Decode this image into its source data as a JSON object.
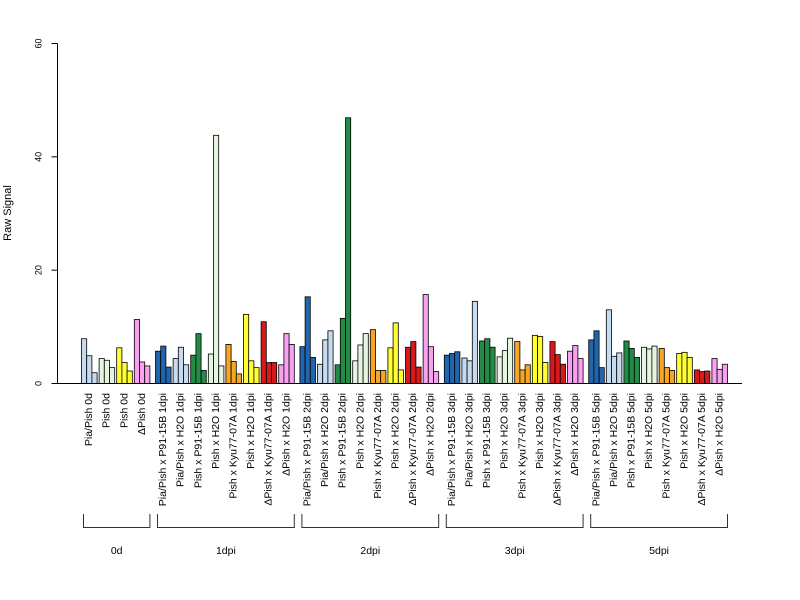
{
  "chart_data": {
    "type": "bar",
    "title": "",
    "xlabel": "",
    "ylabel": "Raw Signal",
    "ylim": [
      0,
      60
    ],
    "yticks": [
      0,
      20,
      40,
      60
    ],
    "grid": false,
    "bar_edge_color": "#000000",
    "groups": [
      {
        "label": "0d",
        "categories": [
          {
            "label": "Pia/Pish 0d",
            "color": "#c6dbef",
            "values": [
              7.9,
              4.9,
              1.9
            ]
          },
          {
            "label": "Pish 0d",
            "color": "#e5f5e0",
            "values": [
              4.4,
              4.1,
              2.8
            ]
          },
          {
            "label": "Pish 0d",
            "color": "#ffff33",
            "values": [
              6.3,
              3.7,
              2.2
            ]
          },
          {
            "label": "ΔPish 0d",
            "color": "#f7a1f0",
            "values": [
              11.3,
              3.8,
              3.1
            ]
          }
        ]
      },
      {
        "label": "1dpi",
        "categories": [
          {
            "label": "Pia/Pish x P91-15B 1dpi",
            "color": "#2166ac",
            "values": [
              5.7,
              6.6,
              2.9
            ]
          },
          {
            "label": "Pia/Pish x H2O 1dpi",
            "color": "#c6dbef",
            "values": [
              4.4,
              6.4,
              3.3
            ]
          },
          {
            "label": "Pish x P91-15B 1dpi",
            "color": "#238b45",
            "values": [
              5.0,
              8.8,
              2.3
            ]
          },
          {
            "label": "Pish x H2O 1dpi",
            "color": "#e5f5e0",
            "values": [
              5.2,
              43.8,
              3.1
            ]
          },
          {
            "label": "Pish x Kyu77-07A 1dpi",
            "color": "#f5a623",
            "values": [
              6.9,
              3.9,
              1.7
            ]
          },
          {
            "label": "Pish x H2O 1dpi",
            "color": "#ffff33",
            "values": [
              12.2,
              4.0,
              2.8
            ]
          },
          {
            "label": "ΔPish x Kyu77-07A 1dpi",
            "color": "#d7191c",
            "values": [
              10.9,
              3.7,
              3.7
            ]
          },
          {
            "label": "ΔPish x H2O 1dpi",
            "color": "#f7a1f0",
            "values": [
              3.3,
              8.8,
              6.9
            ]
          }
        ]
      },
      {
        "label": "2dpi",
        "categories": [
          {
            "label": "Pia/Pish x P91-15B 2dpi",
            "color": "#2166ac",
            "values": [
              6.5,
              15.3,
              4.6
            ]
          },
          {
            "label": "Pia/Pish x H2O 2dpi",
            "color": "#c6dbef",
            "values": [
              3.4,
              7.7,
              9.3
            ]
          },
          {
            "label": "Pish x P91-15B 2dpi",
            "color": "#238b45",
            "values": [
              3.3,
              11.5,
              46.9
            ]
          },
          {
            "label": "Pish x H2O 2dpi",
            "color": "#e5f5e0",
            "values": [
              4.0,
              6.8,
              8.8
            ]
          },
          {
            "label": "Pish x Kyu77-07A 2dpi",
            "color": "#f5a623",
            "values": [
              9.5,
              2.3,
              2.3
            ]
          },
          {
            "label": "Pish x H2O 2dpi",
            "color": "#ffff33",
            "values": [
              6.3,
              10.7,
              2.4
            ]
          },
          {
            "label": "ΔPish x Kyu77-07A 2dpi",
            "color": "#d7191c",
            "values": [
              6.4,
              7.4,
              2.9
            ]
          },
          {
            "label": "ΔPish x H2O 2dpi",
            "color": "#f7a1f0",
            "values": [
              15.7,
              6.5,
              2.1
            ]
          }
        ]
      },
      {
        "label": "3dpi",
        "categories": [
          {
            "label": "Pia/Pish x P91-15B 3dpi",
            "color": "#2166ac",
            "values": [
              5.0,
              5.3,
              5.6
            ]
          },
          {
            "label": "Pia/Pish x H2O 3dpi",
            "color": "#c6dbef",
            "values": [
              4.5,
              4.0,
              14.5
            ]
          },
          {
            "label": "Pish x P91-15B 3dpi",
            "color": "#238b45",
            "values": [
              7.5,
              7.9,
              6.4
            ]
          },
          {
            "label": "Pish x H2O 3dpi",
            "color": "#e5f5e0",
            "values": [
              4.7,
              5.8,
              8.0
            ]
          },
          {
            "label": "Pish x Kyu77-07A 3dpi",
            "color": "#f5a623",
            "values": [
              7.4,
              2.4,
              3.3
            ]
          },
          {
            "label": "Pish x H2O 3dpi",
            "color": "#ffff33",
            "values": [
              8.5,
              8.3,
              3.7
            ]
          },
          {
            "label": "ΔPish x Kyu77-07A 3dpi",
            "color": "#d7191c",
            "values": [
              7.4,
              5.1,
              3.4
            ]
          },
          {
            "label": "ΔPish x H2O 3dpi",
            "color": "#f7a1f0",
            "values": [
              5.7,
              6.7,
              4.4
            ]
          }
        ]
      },
      {
        "label": "5dpi",
        "categories": [
          {
            "label": "Pia/Pish x P91-15B 5dpi",
            "color": "#2166ac",
            "values": [
              7.7,
              9.3,
              2.8
            ]
          },
          {
            "label": "Pia/Pish x H2O 5dpi",
            "color": "#c6dbef",
            "values": [
              13.0,
              4.8,
              5.4
            ]
          },
          {
            "label": "Pish x P91-15B 5dpi",
            "color": "#238b45",
            "values": [
              7.5,
              6.2,
              4.6
            ]
          },
          {
            "label": "Pish x H2O 5dpi",
            "color": "#e5f5e0",
            "values": [
              6.4,
              6.1,
              6.6
            ]
          },
          {
            "label": "Pish x Kyu77-07A 5dpi",
            "color": "#f5a623",
            "values": [
              6.2,
              2.8,
              2.3
            ]
          },
          {
            "label": "Pish x H2O 5dpi",
            "color": "#ffff33",
            "values": [
              5.3,
              5.5,
              4.6
            ]
          },
          {
            "label": "ΔPish x Kyu77-07A 5dpi",
            "color": "#d7191c",
            "values": [
              2.4,
              2.1,
              2.2
            ]
          },
          {
            "label": "ΔPish x H2O 5dpi",
            "color": "#f7a1f0",
            "values": [
              4.4,
              2.5,
              3.4
            ]
          }
        ]
      }
    ]
  }
}
